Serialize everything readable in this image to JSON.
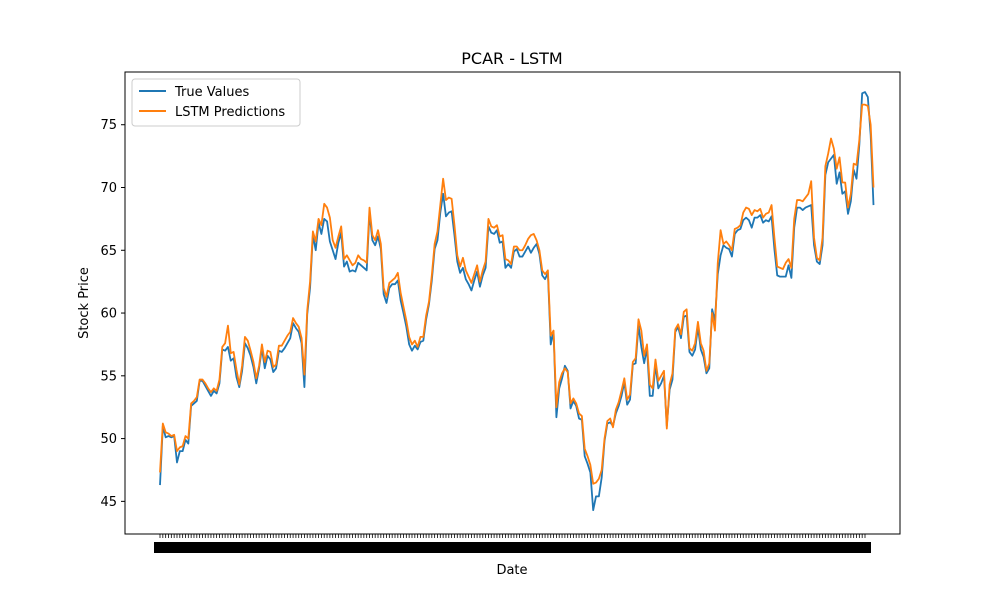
{
  "chart_data": {
    "type": "line",
    "title": "PCAR - LSTM",
    "xlabel": "Date",
    "ylabel": "Stock Price",
    "x_tick_labels_note": "",
    "y_ticks": [
      45,
      50,
      55,
      60,
      65,
      70,
      75
    ],
    "ylim": [
      42.4,
      79.2
    ],
    "x_count": 250,
    "legend_position": "upper-left",
    "grid": false,
    "series": [
      {
        "name": "True Values",
        "color": "#1f77b4",
        "values": [
          46.3,
          51.0,
          50.1,
          50.2,
          50.1,
          50.2,
          48.1,
          49.0,
          49.0,
          49.9,
          49.6,
          52.6,
          52.8,
          53.0,
          54.6,
          54.6,
          54.2,
          53.8,
          53.4,
          53.8,
          53.6,
          54.4,
          57.1,
          57.0,
          57.3,
          56.2,
          56.4,
          54.9,
          54.1,
          55.4,
          57.6,
          57.2,
          56.6,
          55.7,
          54.4,
          55.6,
          57.2,
          55.6,
          56.6,
          56.3,
          55.3,
          55.6,
          57.0,
          56.9,
          57.2,
          57.6,
          58.0,
          59.2,
          58.8,
          58.5,
          57.6,
          54.1,
          59.9,
          62.0,
          66.2,
          65.0,
          67.2,
          66.3,
          67.5,
          67.3,
          65.7,
          65.0,
          64.3,
          65.6,
          66.4,
          63.7,
          64.1,
          63.3,
          63.4,
          63.3,
          64.0,
          63.8,
          63.6,
          63.4,
          68.0,
          65.8,
          65.4,
          66.1,
          65.1,
          61.5,
          60.8,
          62.0,
          62.3,
          62.3,
          62.6,
          61.0,
          60.0,
          58.9,
          57.5,
          57.0,
          57.4,
          57.1,
          57.7,
          57.8,
          59.5,
          60.7,
          62.6,
          65.1,
          65.8,
          68.0,
          69.5,
          67.7,
          68.0,
          68.1,
          66.2,
          64.1,
          63.2,
          63.6,
          62.7,
          62.3,
          61.8,
          62.6,
          63.3,
          62.1,
          63.0,
          63.6,
          66.9,
          66.4,
          66.3,
          66.6,
          65.6,
          65.7,
          63.6,
          63.9,
          63.6,
          64.9,
          65.1,
          64.5,
          64.5,
          64.9,
          65.3,
          64.8,
          65.2,
          65.5,
          64.7,
          63.0,
          62.7,
          63.2,
          57.5,
          58.5,
          51.7,
          54.0,
          54.8,
          55.8,
          55.4,
          52.4,
          53.0,
          52.6,
          51.6,
          51.5,
          48.6,
          48.0,
          47.3,
          44.3,
          45.4,
          45.4,
          46.9,
          49.8,
          51.2,
          51.3,
          51.0,
          52.0,
          52.6,
          53.4,
          54.5,
          52.7,
          53.1,
          55.9,
          56.0,
          59.0,
          57.3,
          56.0,
          57.2,
          53.4,
          53.4,
          55.9,
          54.0,
          54.4,
          55.0,
          51.0,
          53.9,
          54.7,
          58.5,
          58.9,
          58.0,
          59.7,
          59.8,
          56.9,
          56.6,
          57.1,
          58.9,
          57.1,
          56.5,
          55.2,
          55.6,
          60.3,
          59.4,
          63.1,
          64.6,
          65.4,
          65.2,
          65.1,
          64.5,
          66.3,
          66.6,
          66.7,
          67.4,
          67.6,
          67.4,
          66.8,
          67.6,
          67.6,
          67.8,
          67.2,
          67.4,
          67.3,
          67.7,
          65.1,
          63.0,
          62.9,
          62.9,
          62.9,
          63.8,
          62.8,
          66.8,
          68.4,
          68.4,
          68.2,
          68.4,
          68.5,
          68.6,
          65.4,
          64.1,
          63.9,
          65.4,
          71.0,
          72.0,
          72.3,
          72.6,
          70.3,
          71.2,
          69.5,
          69.7,
          67.9,
          68.9,
          71.4,
          70.7,
          73.4,
          77.5,
          77.6,
          77.2,
          74.2,
          68.6
        ]
      },
      {
        "name": "LSTM Predictions",
        "color": "#ff7f0e",
        "values": [
          47.3,
          51.2,
          50.5,
          50.4,
          50.2,
          50.3,
          49.0,
          49.3,
          49.4,
          50.2,
          50.0,
          52.8,
          53.0,
          53.3,
          54.7,
          54.7,
          54.4,
          54.0,
          53.7,
          54.0,
          53.8,
          54.7,
          57.3,
          57.6,
          59.0,
          56.8,
          56.9,
          55.5,
          54.3,
          55.8,
          58.1,
          57.8,
          57.0,
          56.1,
          54.8,
          55.8,
          57.5,
          56.1,
          57.0,
          56.9,
          55.7,
          55.9,
          57.4,
          57.4,
          57.8,
          58.2,
          58.5,
          59.6,
          59.2,
          58.9,
          58.0,
          55.1,
          60.2,
          62.5,
          66.5,
          65.7,
          67.5,
          67.0,
          68.7,
          68.4,
          67.6,
          65.8,
          65.2,
          66.1,
          66.9,
          64.3,
          64.6,
          64.2,
          63.8,
          64.0,
          64.6,
          64.3,
          64.2,
          64.0,
          68.4,
          66.2,
          65.8,
          66.6,
          65.5,
          62.0,
          61.3,
          62.4,
          62.6,
          62.8,
          63.2,
          61.6,
          60.5,
          59.4,
          58.1,
          57.5,
          57.8,
          57.3,
          58.1,
          58.1,
          59.8,
          60.9,
          63.0,
          65.5,
          66.5,
          68.6,
          70.7,
          69.0,
          69.2,
          69.1,
          67.0,
          64.6,
          63.7,
          64.4,
          63.4,
          62.9,
          62.4,
          63.1,
          63.8,
          62.5,
          63.4,
          64.1,
          67.5,
          66.9,
          66.8,
          67.0,
          66.1,
          66.2,
          64.3,
          64.2,
          63.9,
          65.3,
          65.3,
          65.0,
          65.0,
          65.4,
          65.9,
          66.2,
          66.3,
          65.8,
          65.0,
          63.4,
          63.1,
          63.4,
          58.2,
          58.6,
          52.5,
          54.5,
          55.2,
          55.6,
          55.3,
          52.8,
          53.2,
          52.8,
          52.0,
          51.8,
          49.2,
          48.6,
          47.9,
          46.4,
          46.5,
          46.8,
          47.5,
          50.0,
          51.4,
          51.6,
          50.9,
          52.3,
          52.9,
          53.8,
          54.8,
          53.1,
          53.5,
          56.1,
          56.4,
          59.5,
          58.6,
          56.6,
          57.5,
          54.3,
          54.0,
          56.3,
          54.6,
          55.0,
          55.4,
          50.8,
          54.3,
          55.2,
          58.7,
          59.1,
          58.3,
          60.1,
          60.3,
          57.2,
          57.0,
          57.6,
          59.3,
          57.6,
          57.0,
          55.4,
          56.0,
          60.0,
          58.6,
          64.0,
          66.6,
          65.5,
          65.7,
          65.4,
          65.0,
          66.7,
          66.8,
          67.0,
          68.0,
          68.4,
          68.3,
          67.8,
          68.2,
          68.1,
          68.3,
          67.6,
          67.9,
          68.0,
          68.6,
          66.0,
          63.7,
          63.6,
          63.5,
          64.0,
          64.3,
          63.6,
          67.5,
          69.0,
          69.0,
          68.9,
          69.2,
          69.5,
          70.5,
          66.0,
          64.4,
          64.2,
          66.0,
          71.7,
          72.7,
          73.9,
          73.1,
          71.5,
          72.4,
          70.4,
          70.4,
          68.4,
          69.5,
          71.9,
          71.8,
          73.8,
          76.6,
          76.6,
          76.5,
          75.0,
          70.0
        ]
      }
    ]
  }
}
